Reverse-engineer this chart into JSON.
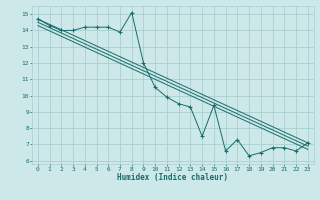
{
  "xlabel": "Humidex (Indice chaleur)",
  "ylabel": "",
  "background_color": "#cce8e8",
  "grid_color": "#aacfcf",
  "line_color": "#1a6b6b",
  "xlim": [
    -0.5,
    23.5
  ],
  "ylim": [
    5.8,
    15.5
  ],
  "yticks": [
    6,
    7,
    8,
    9,
    10,
    11,
    12,
    13,
    14,
    15
  ],
  "xticks": [
    0,
    1,
    2,
    3,
    4,
    5,
    6,
    7,
    8,
    9,
    10,
    11,
    12,
    13,
    14,
    15,
    16,
    17,
    18,
    19,
    20,
    21,
    22,
    23
  ],
  "series": [
    {
      "x": [
        0,
        1,
        2,
        3,
        4,
        5,
        6,
        7,
        8,
        9,
        10,
        11,
        12,
        13,
        14,
        15,
        16,
        17,
        18,
        19,
        20,
        21,
        22,
        23
      ],
      "y": [
        14.7,
        14.3,
        14.0,
        14.0,
        14.2,
        14.2,
        14.2,
        13.9,
        15.1,
        12.0,
        10.5,
        9.9,
        9.5,
        9.3,
        7.5,
        9.4,
        6.6,
        7.3,
        6.3,
        6.5,
        6.8,
        6.8,
        6.6,
        7.1
      ]
    },
    {
      "x": [
        0,
        23
      ],
      "y": [
        14.7,
        7.1
      ]
    },
    {
      "x": [
        0,
        23
      ],
      "y": [
        14.5,
        6.9
      ]
    },
    {
      "x": [
        0,
        23
      ],
      "y": [
        14.3,
        6.7
      ]
    }
  ]
}
